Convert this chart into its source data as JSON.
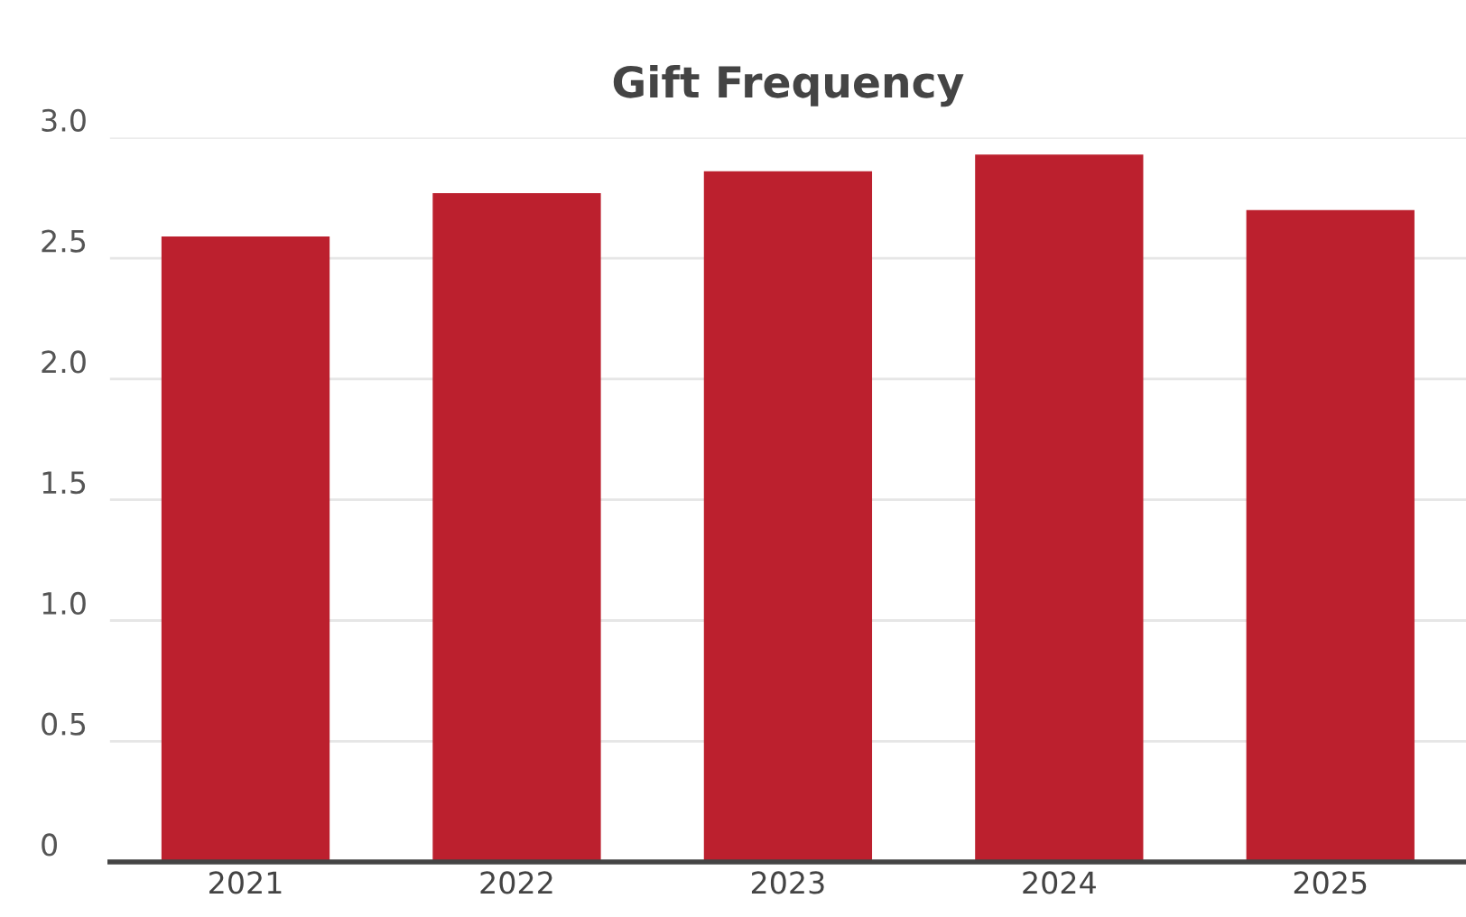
{
  "chart_data": {
    "type": "bar",
    "title": "Gift Frequency",
    "categories": [
      "2021",
      "2022",
      "2023",
      "2024",
      "2025"
    ],
    "values": [
      2.59,
      2.77,
      2.86,
      2.93,
      2.7
    ],
    "color": "#bc202e",
    "ylim": [
      0,
      3.0
    ],
    "yticks": [
      0,
      0.5,
      {
        "value": 1,
        "label": "1.0"
      },
      1.5,
      {
        "value": 2,
        "label": "2.0"
      },
      2.5,
      {
        "value": 3,
        "label": "3.0"
      }
    ],
    "grid": "y"
  }
}
